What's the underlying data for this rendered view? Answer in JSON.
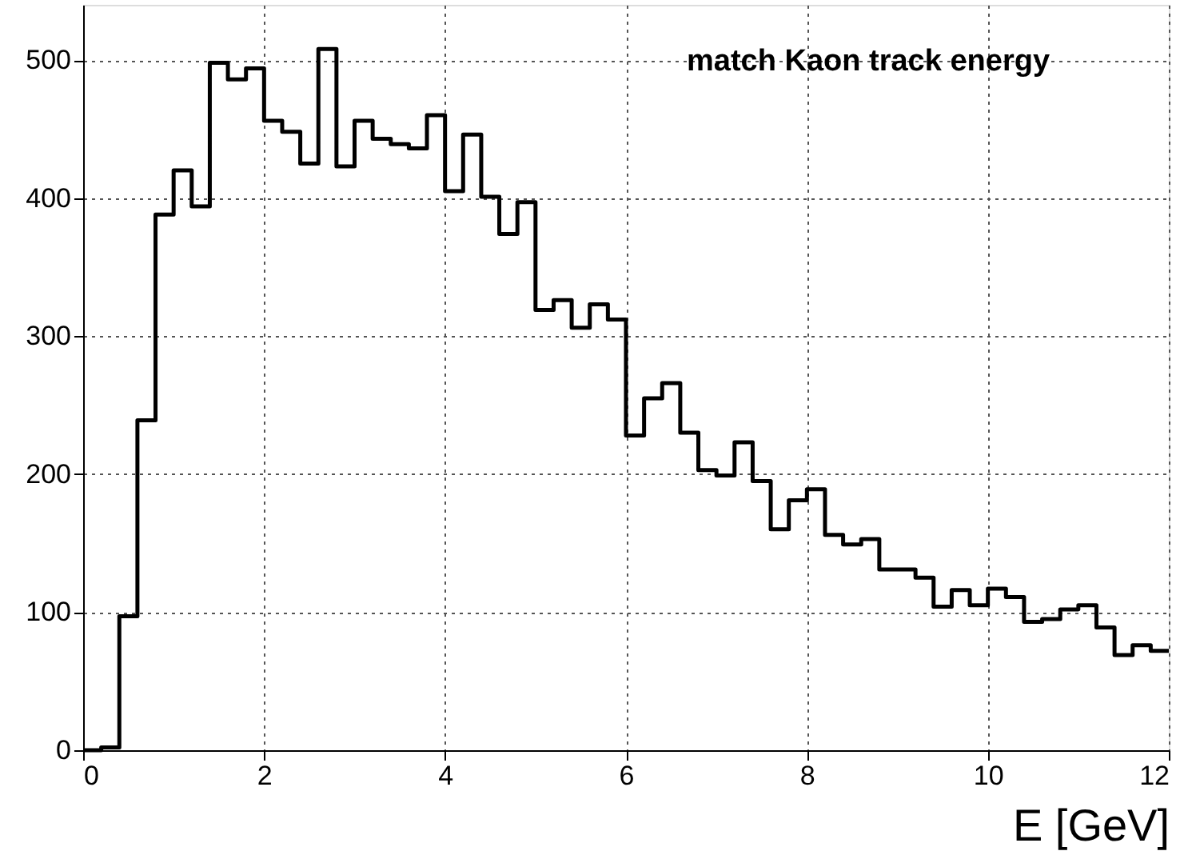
{
  "chart_data": {
    "type": "histogram",
    "title": "match Kaon track energy",
    "xlabel": "E [GeV]",
    "bins": [
      0,
      0.2,
      0.4,
      0.6,
      0.8,
      1.0,
      1.2,
      1.4,
      1.6,
      1.8,
      2.0,
      2.2,
      2.4,
      2.6,
      2.8,
      3.0,
      3.2,
      3.4,
      3.6,
      3.8,
      4.0,
      4.2,
      4.4,
      4.6,
      4.8,
      5.0,
      5.2,
      5.4,
      5.6,
      5.8,
      6.0,
      6.2,
      6.4,
      6.6,
      6.8,
      7.0,
      7.2,
      7.4,
      7.6,
      7.8,
      8.0,
      8.2,
      8.4,
      8.6,
      8.8,
      9.0,
      9.2,
      9.4,
      9.6,
      9.8,
      10.0,
      10.2,
      10.4,
      10.6,
      10.8,
      11.0,
      11.2,
      11.4,
      11.6,
      11.8,
      12.0
    ],
    "values": [
      0,
      2,
      97,
      239,
      388,
      420,
      394,
      498,
      486,
      494,
      456,
      448,
      425,
      508,
      423,
      456,
      443,
      439,
      436,
      460,
      405,
      446,
      401,
      374,
      397,
      319,
      326,
      306,
      323,
      312,
      228,
      255,
      266,
      230,
      203,
      199,
      223,
      195,
      160,
      181,
      189,
      156,
      149,
      153,
      131,
      131,
      125,
      104,
      116,
      105,
      117,
      111,
      93,
      95,
      102,
      105,
      89,
      69,
      76,
      72
    ],
    "color": "#000000",
    "xlim": [
      0,
      12
    ],
    "xticks": [
      0,
      2,
      4,
      6,
      8,
      10,
      12
    ],
    "ylim": [
      0,
      540
    ],
    "yticks": [
      0,
      100,
      200,
      300,
      400,
      500
    ],
    "grid": true
  }
}
